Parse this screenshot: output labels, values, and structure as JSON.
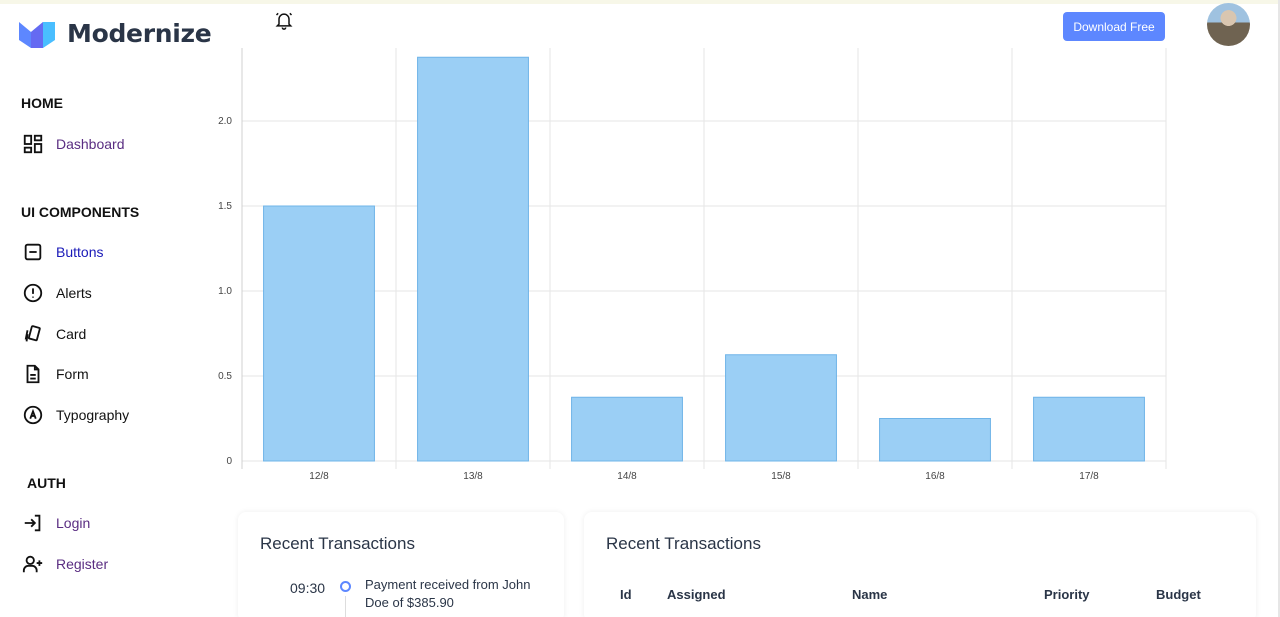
{
  "app": {
    "name": "Modernize"
  },
  "header": {
    "download_label": "Download Free"
  },
  "sidebar": {
    "home_caption": "HOME",
    "home_items": [
      {
        "label": "Dashboard",
        "icon": "dashboard-icon"
      }
    ],
    "ui_caption": "UI COMPONENTS",
    "ui_items": [
      {
        "label": "Buttons",
        "icon": "buttons-icon"
      },
      {
        "label": "Alerts",
        "icon": "alert-circle-icon"
      },
      {
        "label": "Card",
        "icon": "cards-icon"
      },
      {
        "label": "Form",
        "icon": "file-text-icon"
      },
      {
        "label": "Typography",
        "icon": "typography-icon"
      }
    ],
    "auth_caption": "AUTH",
    "auth_items": [
      {
        "label": "Login",
        "icon": "login-icon"
      },
      {
        "label": "Register",
        "icon": "user-plus-icon"
      }
    ]
  },
  "chart_data": {
    "type": "bar",
    "categories": [
      "12/8",
      "13/8",
      "14/8",
      "15/8",
      "16/8",
      "17/8"
    ],
    "values": [
      1.5,
      2.375,
      0.375,
      0.625,
      0.25,
      0.375
    ],
    "yticks": [
      "0",
      "0.5",
      "1.0",
      "1.5",
      "2.0"
    ],
    "ylim": [
      0,
      2.4
    ],
    "grid": true,
    "bar_color": "#9bcff5",
    "bar_border": "#6fb4e8"
  },
  "transactions_card": {
    "title": "Recent Transactions",
    "items": [
      {
        "time": "09:30",
        "text": "Payment received from John Doe of $385.90"
      }
    ]
  },
  "table_card": {
    "title": "Recent Transactions",
    "columns": [
      "Id",
      "Assigned",
      "Name",
      "Priority",
      "Budget"
    ]
  },
  "colors": {
    "primary": "#5d87ff",
    "text": "#2a3547"
  }
}
